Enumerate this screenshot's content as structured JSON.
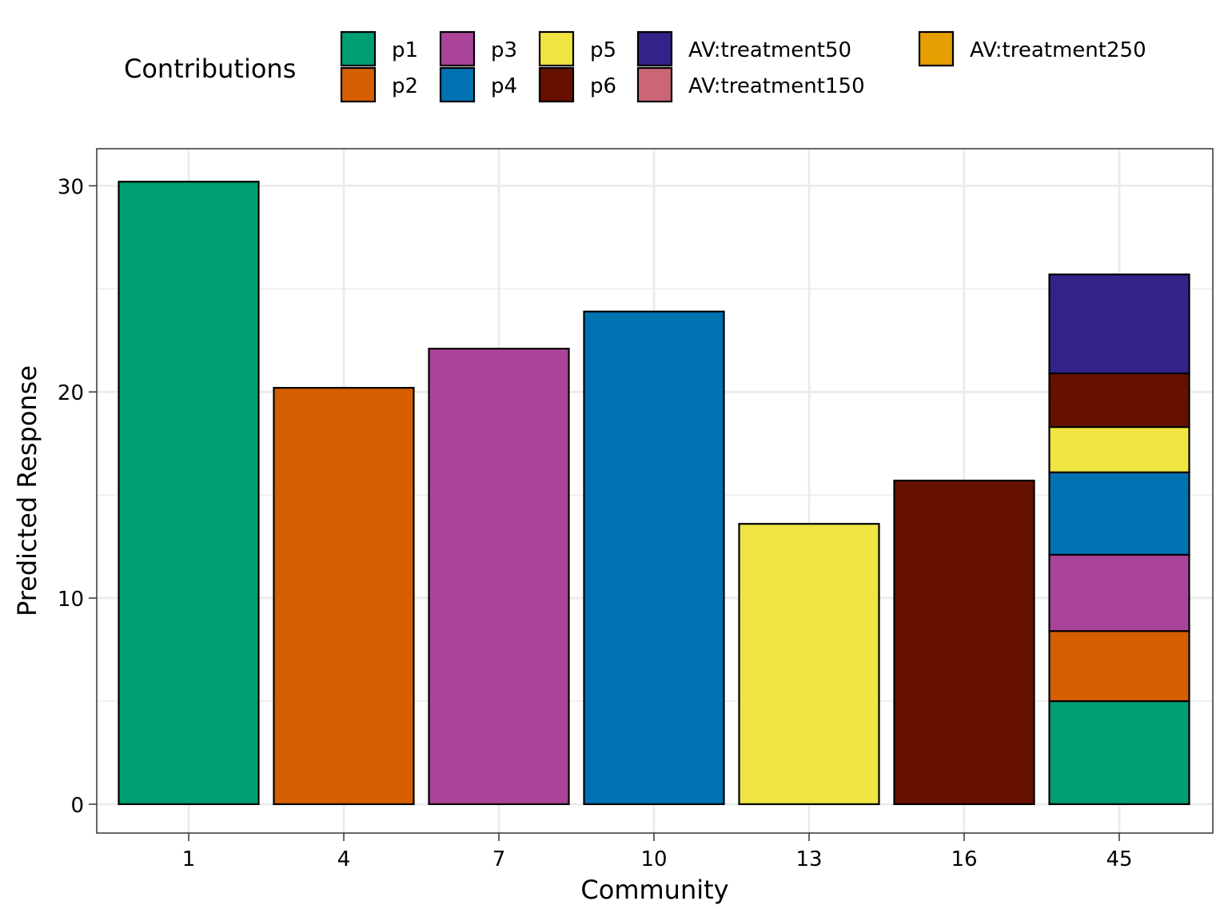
{
  "chart_data": {
    "type": "bar",
    "stacked": true,
    "xlabel": "Community",
    "ylabel": "Predicted Response",
    "ylim": [
      -1.4,
      31.8
    ],
    "yticks": [
      0,
      10,
      20,
      30
    ],
    "grid": true,
    "legend": {
      "title": "Contributions",
      "placement": "top"
    },
    "categories": [
      "1",
      "4",
      "7",
      "10",
      "13",
      "16",
      "45"
    ],
    "series": [
      {
        "name": "p1",
        "color": "#009E73",
        "values": [
          30.2,
          0,
          0,
          0,
          0,
          0,
          5.0
        ]
      },
      {
        "name": "p2",
        "color": "#D55E00",
        "values": [
          0,
          20.2,
          0,
          0,
          0,
          0,
          3.4
        ]
      },
      {
        "name": "p3",
        "color": "#AA4499",
        "values": [
          0,
          0,
          22.1,
          0,
          0,
          0,
          3.7
        ]
      },
      {
        "name": "p4",
        "color": "#0072B2",
        "values": [
          0,
          0,
          0,
          23.9,
          0,
          0,
          4.0
        ]
      },
      {
        "name": "p5",
        "color": "#F0E442",
        "values": [
          0,
          0,
          0,
          0,
          13.6,
          0,
          2.2
        ]
      },
      {
        "name": "p6",
        "color": "#661100",
        "values": [
          0,
          0,
          0,
          0,
          0,
          15.7,
          2.6
        ]
      },
      {
        "name": "AV:treatment50",
        "color": "#332288",
        "values": [
          0,
          0,
          0,
          0,
          0,
          0,
          4.8
        ]
      },
      {
        "name": "AV:treatment150",
        "color": "#CC6677",
        "values": [
          0,
          0,
          0,
          0,
          0,
          0,
          0
        ]
      },
      {
        "name": "AV:treatment250",
        "color": "#E69F00",
        "values": [
          0,
          0,
          0,
          0,
          0,
          0,
          0
        ]
      }
    ]
  }
}
